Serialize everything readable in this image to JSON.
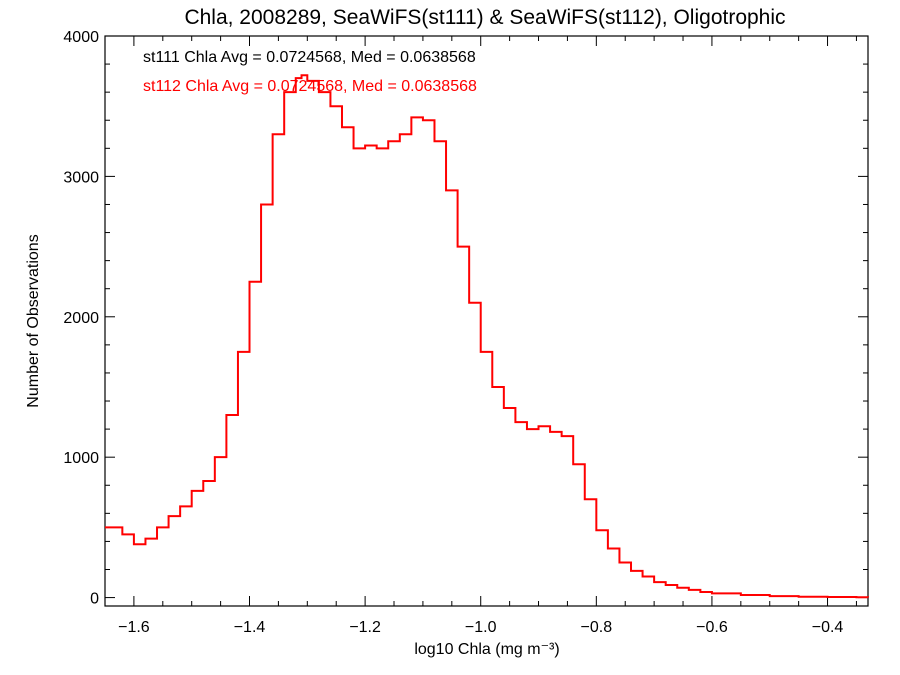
{
  "chart_data": {
    "type": "line",
    "title": "Chla, 2008289, SeaWiFS(st111) & SeaWiFS(st112), Oligotrophic",
    "xlabel": "log10 Chla (mg m⁻³)",
    "ylabel": "Number of Observations",
    "xlim": [
      -1.65,
      -0.33
    ],
    "ylim": [
      -60,
      4000
    ],
    "x_ticks": [
      -1.6,
      -1.4,
      -1.2,
      -1.0,
      -0.8,
      -0.6,
      -0.4
    ],
    "x_tick_labels": [
      "−1.6",
      "−1.4",
      "−1.2",
      "−1.0",
      "−0.8",
      "−0.6",
      "−0.4"
    ],
    "y_ticks": [
      0,
      1000,
      2000,
      3000,
      4000
    ],
    "y_tick_labels": [
      "0",
      "1000",
      "2000",
      "3000",
      "4000"
    ],
    "grid": false,
    "legend_position": "top-left",
    "annotations": [
      {
        "text": "st111 Chla Avg = 0.0724568, Med = 0.0638568",
        "color": "#000000"
      },
      {
        "text": "st112 Chla Avg = 0.0724568, Med = 0.0638568",
        "color": "#ff0000"
      }
    ],
    "series": [
      {
        "color": "#ff0000",
        "x": [
          -1.65,
          -1.62,
          -1.6,
          -1.58,
          -1.56,
          -1.54,
          -1.52,
          -1.5,
          -1.48,
          -1.46,
          -1.44,
          -1.42,
          -1.4,
          -1.38,
          -1.36,
          -1.34,
          -1.32,
          -1.31,
          -1.3,
          -1.28,
          -1.26,
          -1.24,
          -1.22,
          -1.2,
          -1.18,
          -1.16,
          -1.14,
          -1.12,
          -1.1,
          -1.08,
          -1.06,
          -1.04,
          -1.02,
          -1.0,
          -0.98,
          -0.96,
          -0.94,
          -0.92,
          -0.9,
          -0.88,
          -0.86,
          -0.84,
          -0.82,
          -0.8,
          -0.78,
          -0.76,
          -0.74,
          -0.72,
          -0.7,
          -0.68,
          -0.66,
          -0.64,
          -0.62,
          -0.6,
          -0.55,
          -0.5,
          -0.45,
          -0.4,
          -0.35,
          -0.33
        ],
        "y": [
          500,
          450,
          380,
          420,
          500,
          580,
          650,
          760,
          830,
          1000,
          1300,
          1750,
          2250,
          2800,
          3300,
          3600,
          3700,
          3720,
          3680,
          3600,
          3500,
          3350,
          3200,
          3220,
          3200,
          3250,
          3300,
          3420,
          3400,
          3250,
          2900,
          2500,
          2100,
          1750,
          1500,
          1350,
          1250,
          1200,
          1220,
          1180,
          1150,
          950,
          700,
          480,
          350,
          250,
          190,
          150,
          110,
          90,
          70,
          55,
          40,
          30,
          18,
          10,
          6,
          4,
          2,
          1
        ]
      }
    ]
  }
}
